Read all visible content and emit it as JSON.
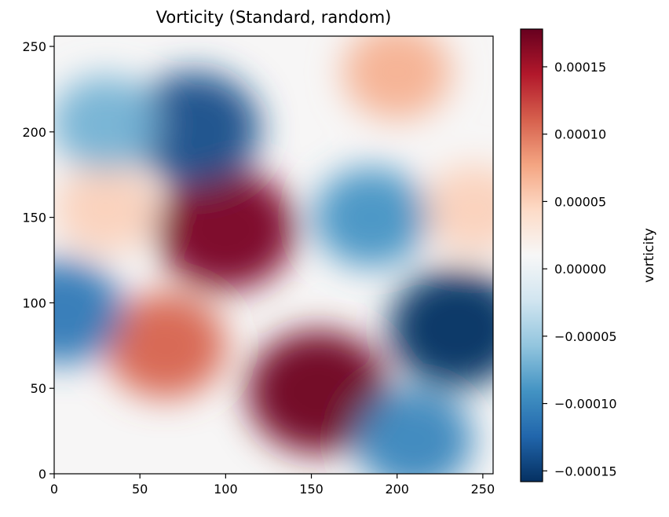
{
  "chart_data": {
    "type": "heatmap",
    "title": "Vorticity (Standard, random)",
    "xlabel": "",
    "ylabel": "",
    "xlim": [
      0,
      256
    ],
    "ylim": [
      0,
      256
    ],
    "x_ticks": [
      0,
      50,
      100,
      150,
      200,
      250
    ],
    "y_ticks": [
      0,
      50,
      100,
      150,
      200,
      250
    ],
    "colormap": "RdBu_r",
    "colorbar": {
      "label": "vorticity",
      "range": [
        -0.000158,
        0.000178
      ],
      "ticks": [
        0.00015,
        0.0001,
        5e-05,
        0.0,
        -5e-05,
        -0.0001,
        -0.00015
      ],
      "tick_labels": [
        "0.00015",
        "0.00010",
        "0.00005",
        "0.00000",
        "−0.00005",
        "−0.00010",
        "−0.00015"
      ]
    },
    "features": [
      {
        "x": 100,
        "y": 143,
        "value": 0.00017
      },
      {
        "x": 154,
        "y": 48,
        "value": 0.000175
      },
      {
        "x": 65,
        "y": 75,
        "value": 0.00011
      },
      {
        "x": 30,
        "y": 155,
        "value": 5e-05
      },
      {
        "x": 200,
        "y": 235,
        "value": 7e-05
      },
      {
        "x": 245,
        "y": 155,
        "value": 5e-05
      },
      {
        "x": 82,
        "y": 202,
        "value": -0.00014
      },
      {
        "x": 30,
        "y": 205,
        "value": -7e-05
      },
      {
        "x": 235,
        "y": 85,
        "value": -0.000158
      },
      {
        "x": 185,
        "y": 150,
        "value": -9e-05
      },
      {
        "x": 210,
        "y": 20,
        "value": -0.0001
      },
      {
        "x": 5,
        "y": 95,
        "value": -0.00011
      }
    ]
  }
}
